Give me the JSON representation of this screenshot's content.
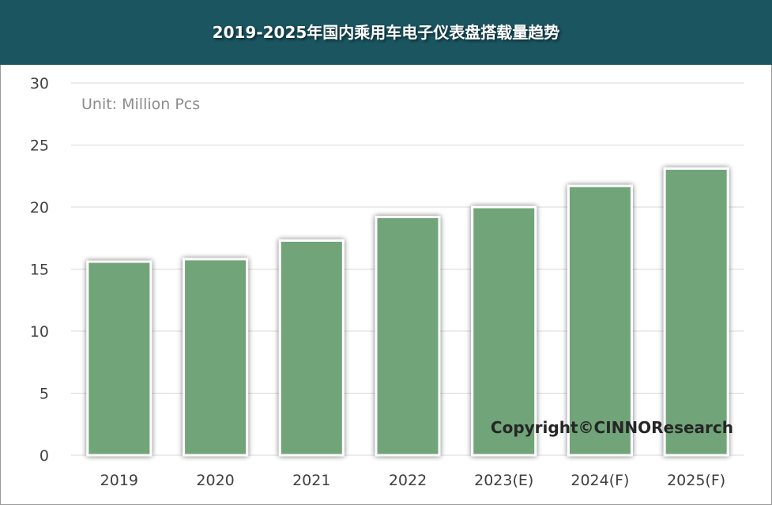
{
  "title": "2019-2025年国内乘用车电子仪表盘搭载量趋势",
  "unit_label": "Unit: Million Pcs",
  "copyright": "Copyright©CINNOResearch",
  "colors": {
    "title_bg": "#1a5560",
    "bar": "#71a478",
    "grid": "#d9d9d9"
  },
  "chart_data": {
    "type": "bar",
    "title": "2019-2025年国内乘用车电子仪表盘搭载量趋势",
    "categories": [
      "2019",
      "2020",
      "2021",
      "2022",
      "2023(E)",
      "2024(F)",
      "2025(F)"
    ],
    "values": [
      15.6,
      15.8,
      17.3,
      19.2,
      20.0,
      21.7,
      23.1
    ],
    "ylim": [
      0,
      30
    ],
    "yticks": [
      "0",
      "5",
      "10",
      "15",
      "20",
      "25",
      "30"
    ],
    "xlabel": "",
    "ylabel": "",
    "grid": true,
    "legend": "none"
  }
}
